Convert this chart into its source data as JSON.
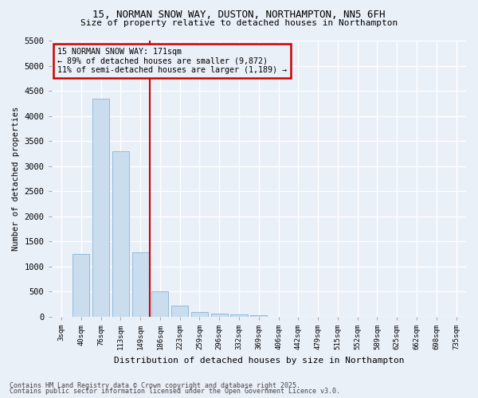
{
  "title_line1": "15, NORMAN SNOW WAY, DUSTON, NORTHAMPTON, NN5 6FH",
  "title_line2": "Size of property relative to detached houses in Northampton",
  "xlabel": "Distribution of detached houses by size in Northampton",
  "ylabel": "Number of detached properties",
  "categories": [
    "3sqm",
    "40sqm",
    "76sqm",
    "113sqm",
    "149sqm",
    "186sqm",
    "223sqm",
    "259sqm",
    "296sqm",
    "332sqm",
    "369sqm",
    "406sqm",
    "442sqm",
    "479sqm",
    "515sqm",
    "552sqm",
    "589sqm",
    "625sqm",
    "662sqm",
    "698sqm",
    "735sqm"
  ],
  "values": [
    0,
    1250,
    4350,
    3300,
    1280,
    500,
    220,
    90,
    55,
    40,
    30,
    0,
    0,
    0,
    0,
    0,
    0,
    0,
    0,
    0,
    0
  ],
  "bar_color": "#c9ddef",
  "bar_edge_color": "#87b3d4",
  "vline_x_index": 4.5,
  "vline_color": "#cc0000",
  "annotation_text": "15 NORMAN SNOW WAY: 171sqm\n← 89% of detached houses are smaller (9,872)\n11% of semi-detached houses are larger (1,189) →",
  "annotation_box_color": "#cc0000",
  "ylim": [
    0,
    5500
  ],
  "yticks": [
    0,
    500,
    1000,
    1500,
    2000,
    2500,
    3000,
    3500,
    4000,
    4500,
    5000,
    5500
  ],
  "background_color": "#eaf0f8",
  "grid_color": "#ffffff",
  "footer_line1": "Contains HM Land Registry data © Crown copyright and database right 2025.",
  "footer_line2": "Contains public sector information licensed under the Open Government Licence v3.0."
}
